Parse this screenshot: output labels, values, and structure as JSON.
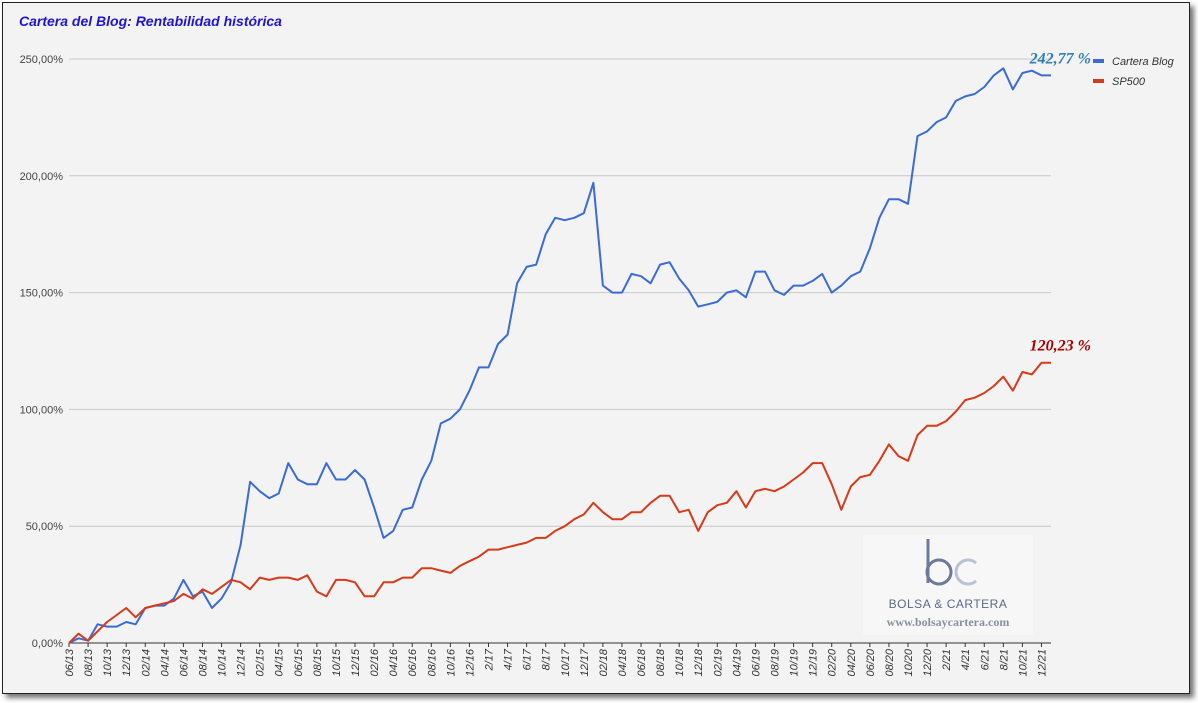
{
  "chart_data": {
    "type": "line",
    "title": "Cartera del Blog: Rentabilidad histórica",
    "xlabel": "",
    "ylabel": "",
    "ylim": [
      0,
      250
    ],
    "y_ticks": [
      "0,00%",
      "50,00%",
      "100,00%",
      "150,00%",
      "200,00%",
      "250,00%"
    ],
    "grid": true,
    "legend_position": "top-right",
    "x_tick_labels": [
      "06/13",
      "08/13",
      "10/13",
      "12/13",
      "02/14",
      "04/14",
      "06/14",
      "08/14",
      "10/14",
      "12/14",
      "02/15",
      "04/15",
      "06/15",
      "08/15",
      "10/15",
      "12/15",
      "02/16",
      "04/16",
      "06/16",
      "08/16",
      "10/16",
      "12/16",
      "2/17",
      "4/17",
      "6/17",
      "8/17",
      "10/17",
      "12/17",
      "02/18",
      "04/18",
      "06/18",
      "08/18",
      "10/18",
      "12/18",
      "02/19",
      "04/19",
      "06/19",
      "08/19",
      "10/19",
      "12/19",
      "02/20",
      "04/20",
      "06/20",
      "08/20",
      "10/20",
      "12/20",
      "2/21",
      "4/21",
      "6/21",
      "8/21",
      "10/21",
      "12/21"
    ],
    "x": [
      "06/13",
      "07/13",
      "08/13",
      "09/13",
      "10/13",
      "11/13",
      "12/13",
      "01/14",
      "02/14",
      "03/14",
      "04/14",
      "05/14",
      "06/14",
      "07/14",
      "08/14",
      "09/14",
      "10/14",
      "11/14",
      "12/14",
      "01/15",
      "02/15",
      "03/15",
      "04/15",
      "05/15",
      "06/15",
      "07/15",
      "08/15",
      "09/15",
      "10/15",
      "11/15",
      "12/15",
      "01/16",
      "02/16",
      "03/16",
      "04/16",
      "05/16",
      "06/16",
      "07/16",
      "08/16",
      "09/16",
      "10/16",
      "11/16",
      "12/16",
      "1/17",
      "2/17",
      "3/17",
      "4/17",
      "5/17",
      "6/17",
      "7/17",
      "8/17",
      "9/17",
      "10/17",
      "11/17",
      "12/17",
      "1/18",
      "02/18",
      "03/18",
      "04/18",
      "05/18",
      "06/18",
      "07/18",
      "08/18",
      "09/18",
      "10/18",
      "11/18",
      "12/18",
      "01/19",
      "02/19",
      "03/19",
      "04/19",
      "05/19",
      "06/19",
      "07/19",
      "08/19",
      "09/19",
      "10/19",
      "11/19",
      "12/19",
      "01/20",
      "02/20",
      "03/20",
      "04/20",
      "05/20",
      "06/20",
      "07/20",
      "08/20",
      "09/20",
      "10/20",
      "11/20",
      "12/20",
      "1/21",
      "2/21",
      "3/21",
      "4/21",
      "5/21",
      "6/21",
      "7/21",
      "8/21",
      "9/21",
      "10/21",
      "11/21",
      "12/21",
      "1/22"
    ],
    "series": [
      {
        "name": "Cartera Blog",
        "color": "#3b6bd4",
        "values": [
          0,
          2,
          1,
          8,
          7,
          7,
          9,
          8,
          15,
          16,
          16,
          19,
          27,
          20,
          22,
          15,
          19,
          26,
          42,
          69,
          65,
          62,
          64,
          77,
          70,
          68,
          68,
          77,
          70,
          70,
          74,
          70,
          58,
          45,
          48,
          57,
          58,
          70,
          78,
          94,
          96,
          100,
          108,
          118,
          118,
          128,
          132,
          154,
          161,
          162,
          175,
          182,
          181,
          182,
          184,
          197,
          153,
          150,
          150,
          158,
          157,
          154,
          162,
          163,
          156,
          151,
          144,
          145,
          146,
          150,
          151,
          148,
          159,
          159,
          151,
          149,
          153,
          153,
          155,
          158,
          150,
          153,
          157,
          159,
          169,
          182,
          190,
          190,
          188,
          217,
          219,
          223,
          225,
          232,
          234,
          235,
          238,
          243,
          246,
          237,
          244,
          245,
          243,
          243
        ],
        "end_label": "242,77 %"
      },
      {
        "name": "SP500",
        "color": "#d63a1b",
        "values": [
          0,
          4,
          1,
          5,
          9,
          12,
          15,
          11,
          15,
          16,
          17,
          18,
          21,
          19,
          23,
          21,
          24,
          27,
          26,
          23,
          28,
          27,
          28,
          28,
          27,
          29,
          22,
          20,
          27,
          27,
          26,
          20,
          20,
          26,
          26,
          28,
          28,
          32,
          32,
          31,
          30,
          33,
          35,
          37,
          40,
          40,
          41,
          42,
          43,
          45,
          45,
          48,
          50,
          53,
          55,
          60,
          56,
          53,
          53,
          56,
          56,
          60,
          63,
          63,
          56,
          57,
          48,
          56,
          59,
          60,
          65,
          58,
          65,
          66,
          65,
          67,
          70,
          73,
          77,
          77,
          68,
          57,
          67,
          71,
          72,
          78,
          85,
          80,
          78,
          89,
          93,
          93,
          95,
          99,
          104,
          105,
          107,
          110,
          114,
          108,
          116,
          115,
          120,
          120
        ],
        "end_label": "120,23 %"
      }
    ]
  },
  "watermark": {
    "brand": "BOLSA & CARTERA",
    "url": "www.bolsaycartera.com"
  }
}
